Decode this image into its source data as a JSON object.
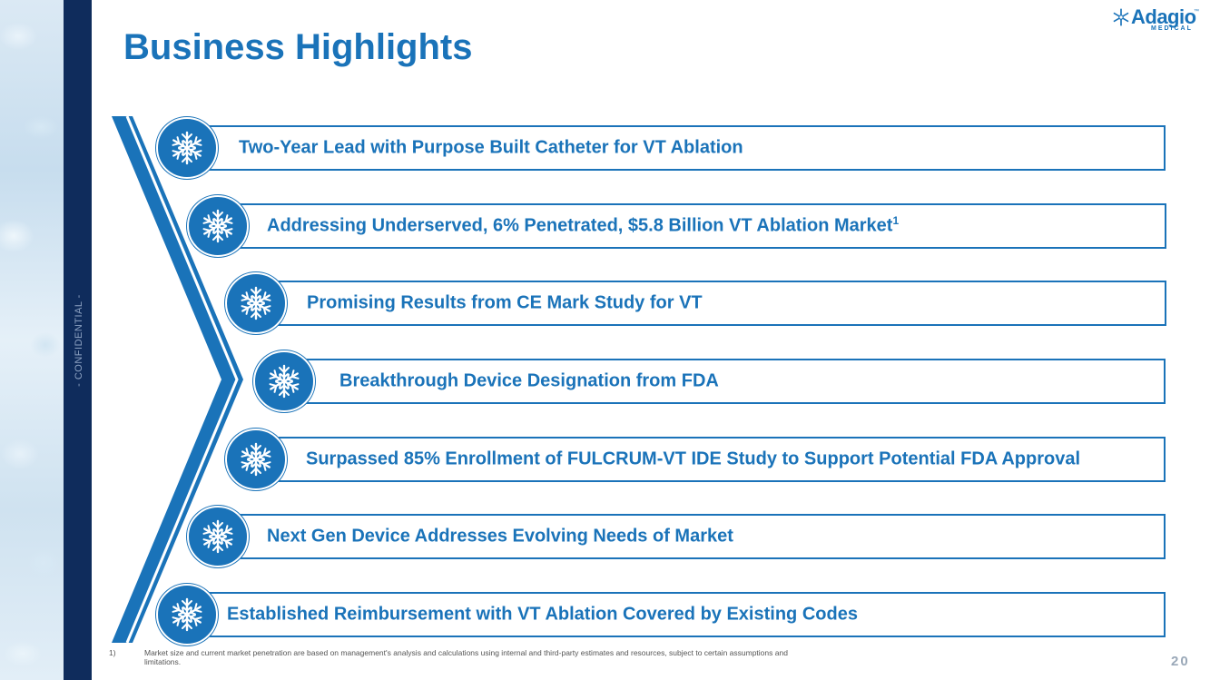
{
  "slide": {
    "title": "Business Highlights",
    "side_label": "- CONFIDENTIAL -",
    "page_number": "20"
  },
  "logo": {
    "name": "Adagio",
    "trademark": "™",
    "subtitle": "MEDICAL"
  },
  "highlights": [
    {
      "text": "Two-Year Lead with Purpose Built Catheter for VT Ablation",
      "sup": ""
    },
    {
      "text": "Addressing Underserved, 6% Penetrated, $5.8 Billion VT Ablation Market",
      "sup": "1"
    },
    {
      "text": "Promising Results from CE Mark Study for VT",
      "sup": ""
    },
    {
      "text": "Breakthrough Device Designation from FDA",
      "sup": ""
    },
    {
      "text": "Surpassed 85% Enrollment of FULCRUM-VT IDE Study to Support Potential FDA Approval",
      "sup": ""
    },
    {
      "text": "Next Gen Device Addresses Evolving Needs of Market",
      "sup": ""
    },
    {
      "text": "Established Reimbursement with VT Ablation Covered by Existing Codes",
      "sup": ""
    }
  ],
  "footnote": {
    "number": "1)",
    "text": "Market size and current market penetration are based on management's analysis and calculations using internal and third-party estimates and resources, subject to certain assumptions and limitations."
  },
  "icons": {
    "item_icon": "snowflake-icon",
    "logo_icon": "snowflake-icon"
  },
  "colors": {
    "brand_blue": "#1a73b9",
    "navy": "#0f2c5c",
    "background": "#ffffff"
  }
}
